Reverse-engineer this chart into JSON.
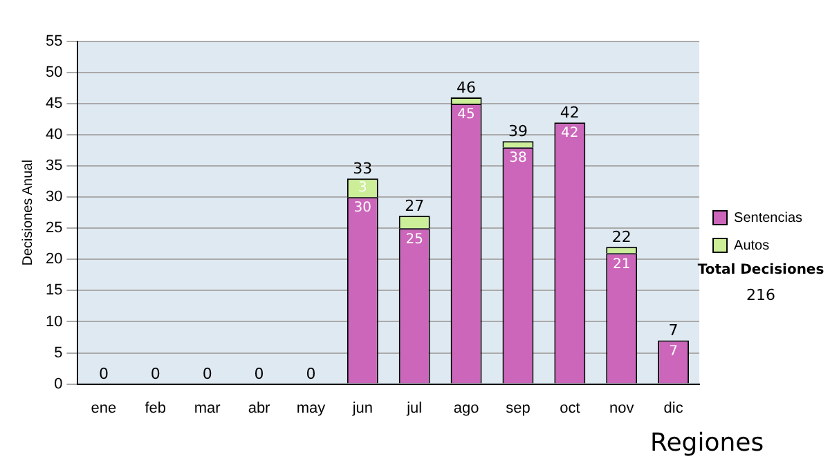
{
  "chart_data": {
    "type": "bar",
    "stacked": true,
    "ylabel": "Decisiones Anual",
    "categories": [
      "ene",
      "feb",
      "mar",
      "abr",
      "may",
      "jun",
      "jul",
      "ago",
      "sep",
      "oct",
      "nov",
      "dic"
    ],
    "series": [
      {
        "name": "Sentencias",
        "color": "#cc66bb",
        "values": [
          0,
          0,
          0,
          0,
          0,
          30,
          25,
          45,
          38,
          42,
          21,
          7
        ],
        "value_labels": [
          null,
          null,
          null,
          null,
          null,
          "30",
          "25",
          "45",
          "38",
          "42",
          "21",
          "7"
        ]
      },
      {
        "name": "Autos",
        "color": "#ccee99",
        "values": [
          0,
          0,
          0,
          0,
          0,
          3,
          2,
          1,
          1,
          0,
          1,
          0
        ],
        "value_labels": [
          null,
          null,
          null,
          null,
          null,
          "3",
          null,
          null,
          null,
          null,
          null,
          null
        ]
      }
    ],
    "totals": [
      "0",
      "0",
      "0",
      "0",
      "0",
      "33",
      "27",
      "46",
      "39",
      "42",
      "22",
      "7"
    ],
    "ylim": [
      0,
      55
    ],
    "yticks": [
      0,
      5,
      10,
      15,
      20,
      25,
      30,
      35,
      40,
      45,
      50,
      55
    ],
    "grid": "y",
    "legend": "right",
    "annotations": [
      "Total Decisiones",
      "216",
      "Regiones"
    ]
  }
}
